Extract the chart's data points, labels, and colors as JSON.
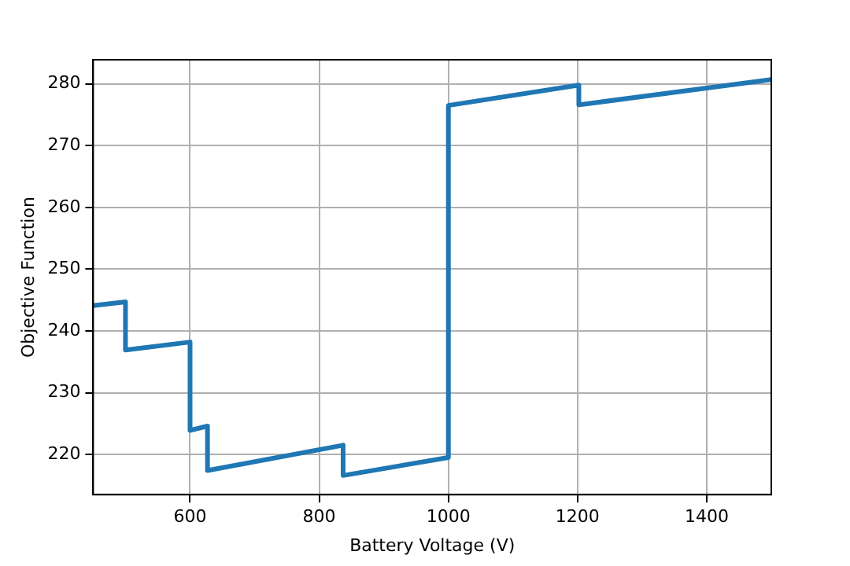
{
  "chart_data": {
    "type": "line",
    "xlabel": "Battery Voltage (V)",
    "ylabel": "Objective Function",
    "x": [
      450,
      500,
      500,
      600,
      600,
      627,
      627,
      837,
      837,
      1000,
      1000,
      1202,
      1202,
      1500
    ],
    "series": [
      {
        "color": "#1f77b4",
        "values": [
          244.1,
          244.7,
          236.9,
          238.2,
          223.9,
          224.6,
          217.4,
          221.5,
          216.6,
          219.5,
          276.5,
          279.8,
          276.6,
          280.7
        ]
      }
    ],
    "xlim": [
      450,
      1500
    ],
    "xticks": [
      600,
      800,
      1000,
      1200,
      1400
    ],
    "ylim": [
      213.5,
      283.9
    ],
    "yticks": [
      220,
      230,
      240,
      250,
      260,
      270,
      280
    ],
    "grid": true,
    "marker": "none",
    "line_style": "solid"
  }
}
